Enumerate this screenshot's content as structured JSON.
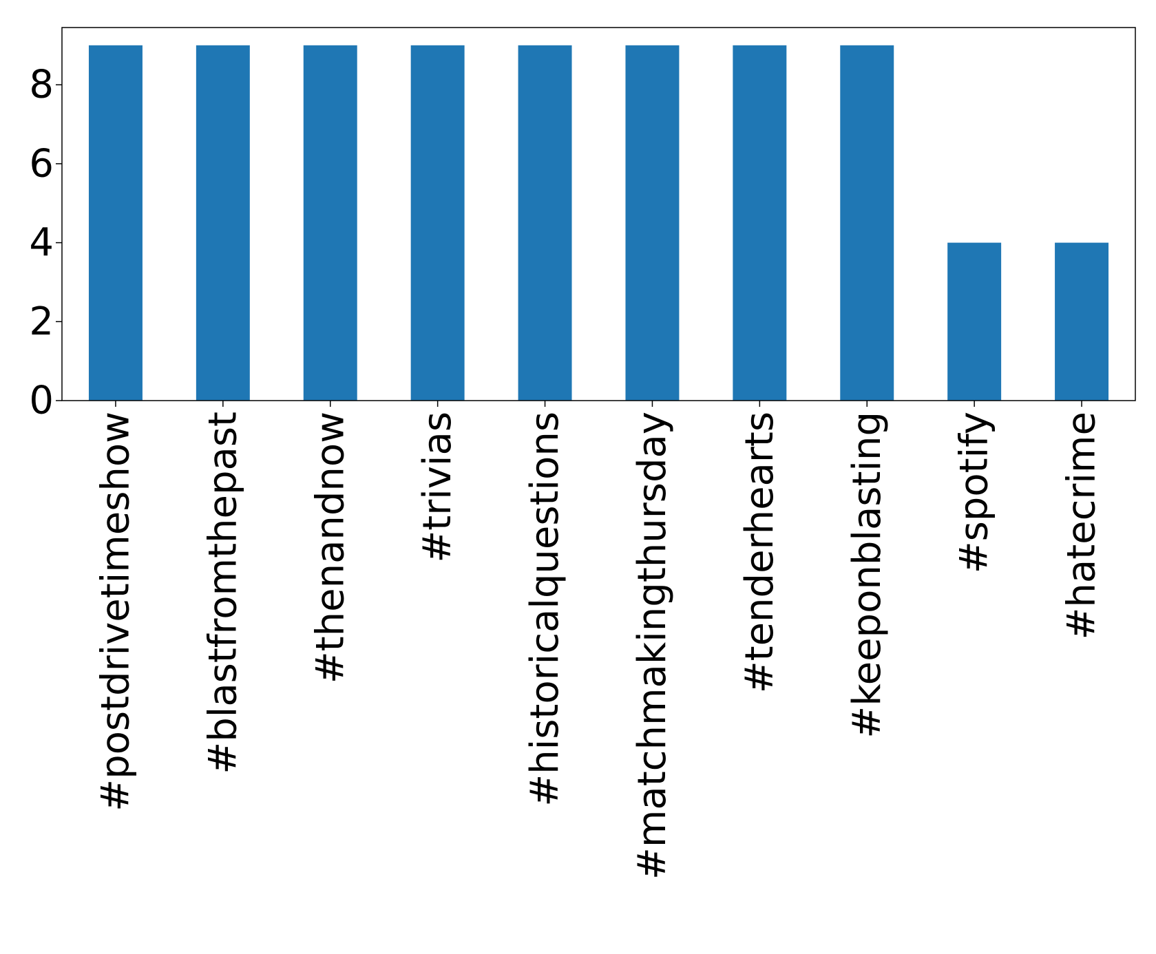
{
  "chart_data": {
    "type": "bar",
    "title": "",
    "xlabel": "",
    "ylabel": "",
    "categories": [
      "#postdrivetimeshow",
      "#blastfromthepast",
      "#thenandnow",
      "#trivias",
      "#historicalquestions",
      "#matchmakingthursday",
      "#tenderhearts",
      "#keeponblasting",
      "#spotify",
      "#hatecrime"
    ],
    "values": [
      9,
      9,
      9,
      9,
      9,
      9,
      9,
      9,
      4,
      4
    ],
    "ylim": [
      0,
      9.45
    ],
    "yticks": [
      0,
      2,
      4,
      6,
      8
    ],
    "ytick_labels": [
      "0",
      "2",
      "4",
      "6",
      "8"
    ],
    "grid": false,
    "legend": "none",
    "bar_color": "#1f77b4"
  }
}
